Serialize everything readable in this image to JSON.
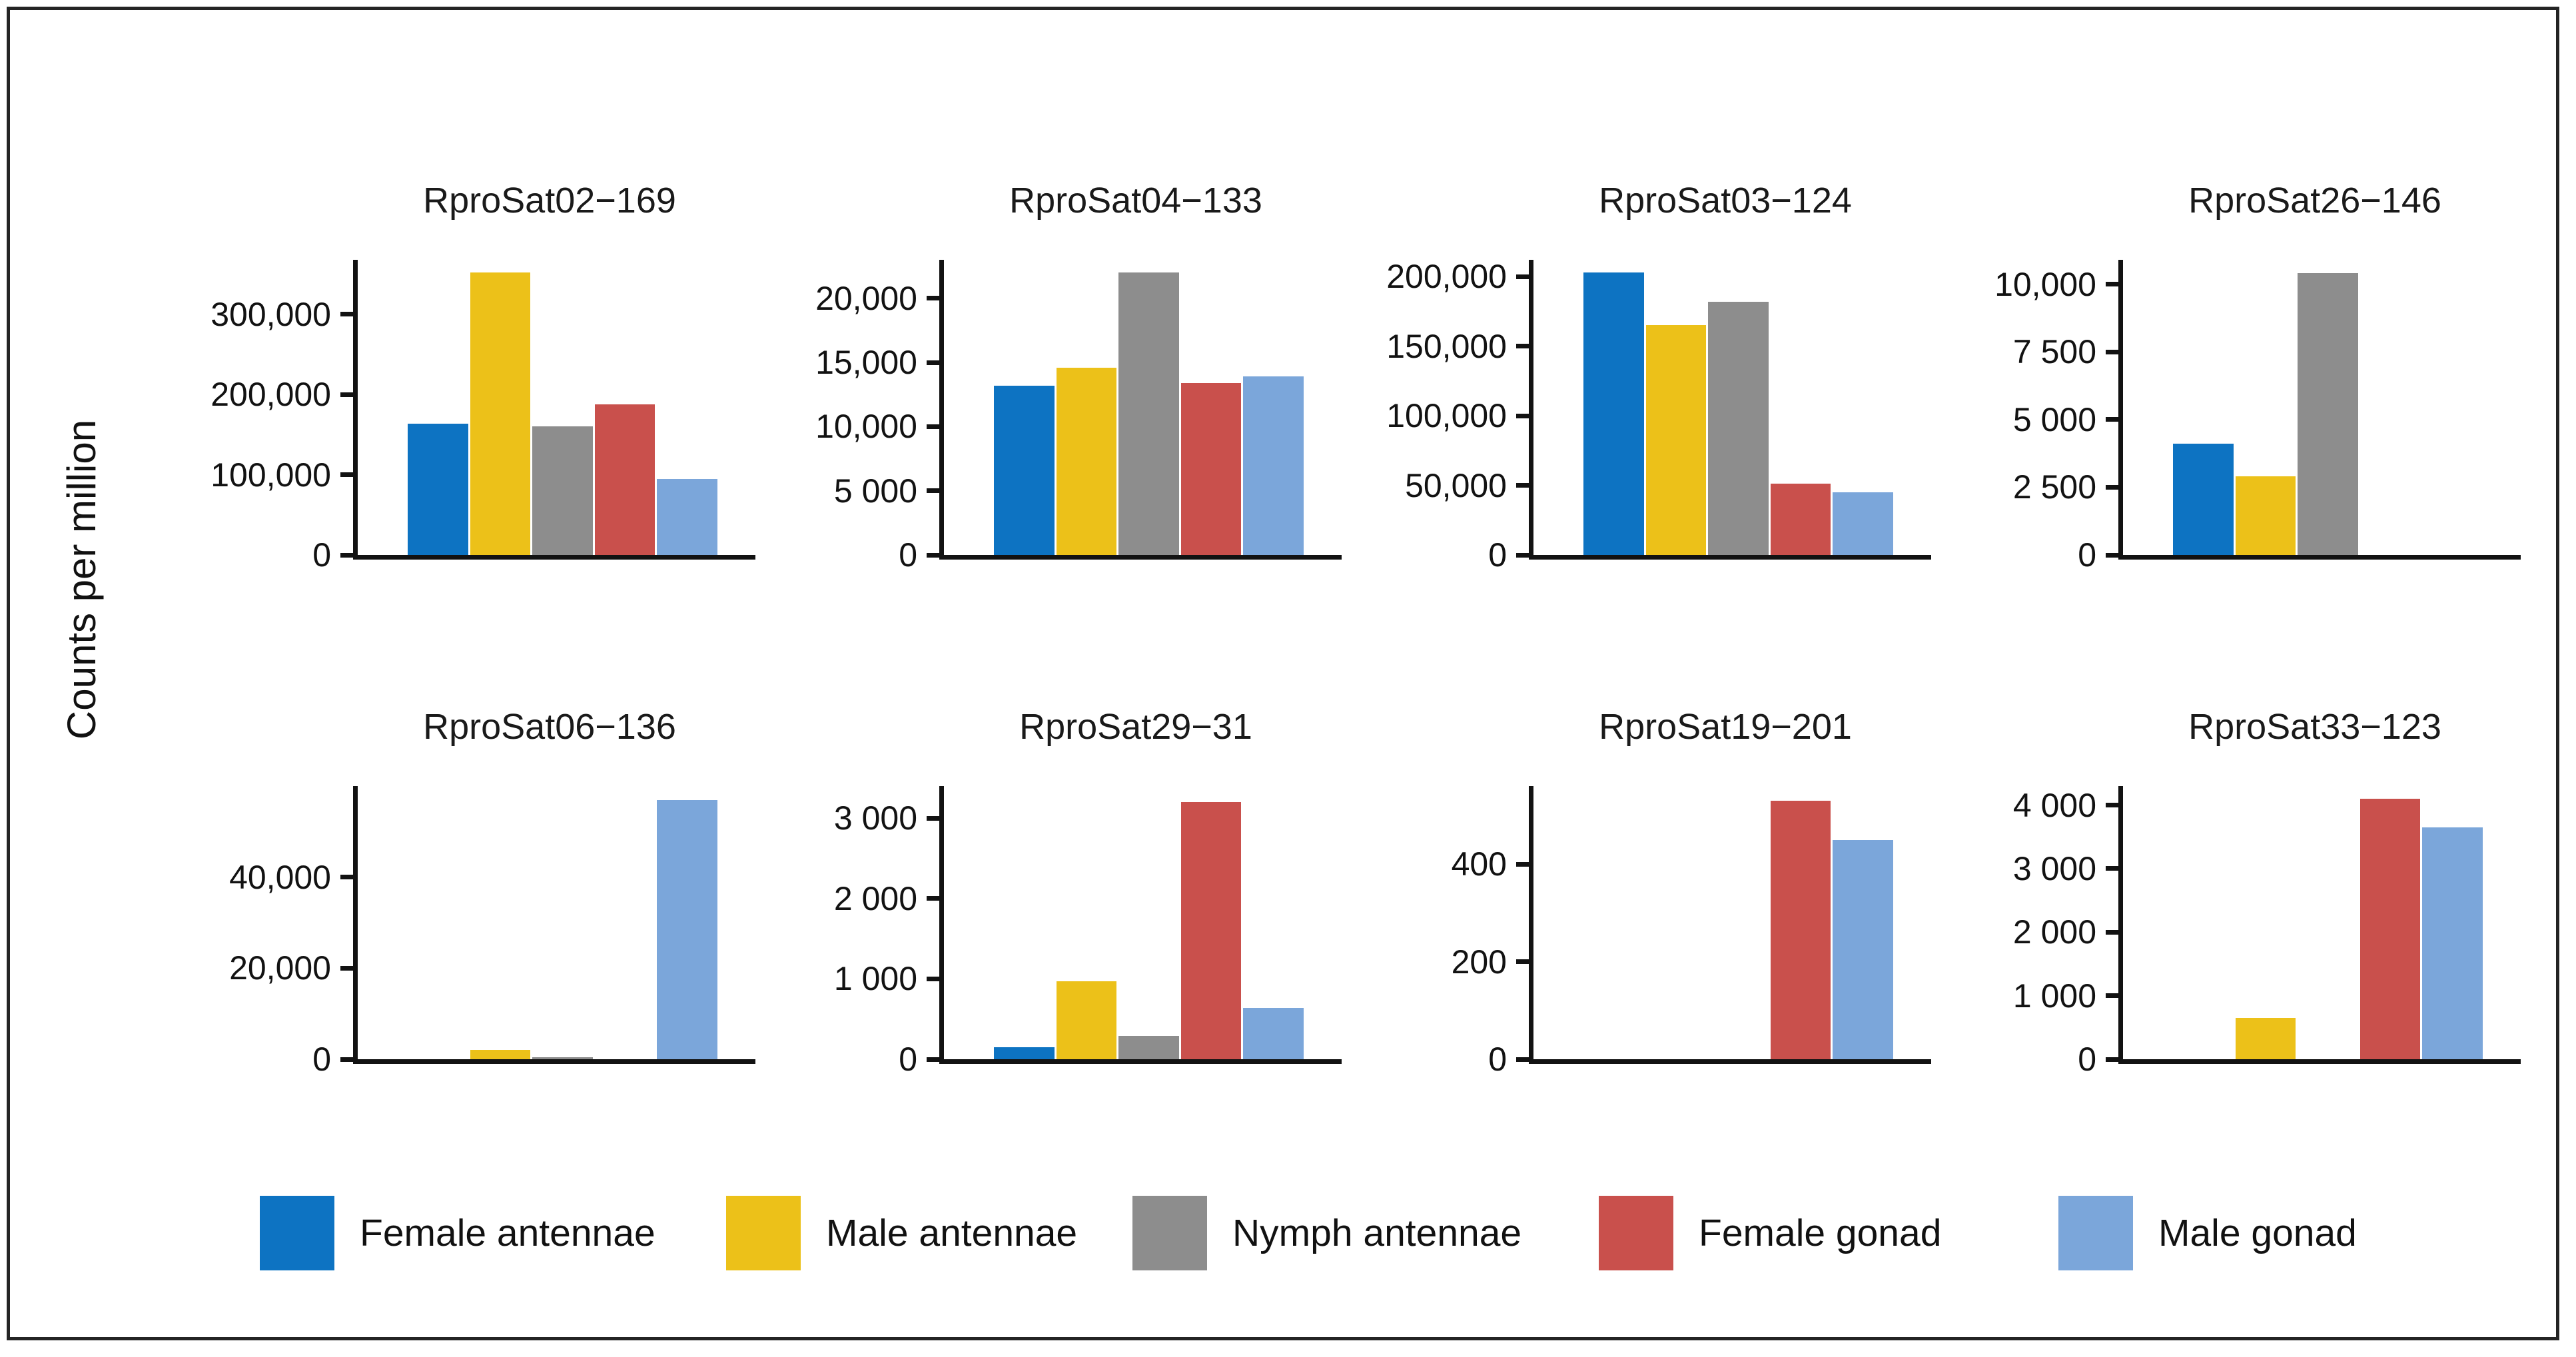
{
  "window": {
    "background": "#ffffff",
    "border_color": "#242424",
    "axis_color": "#121212"
  },
  "chart_data": {
    "type": "bar",
    "ylabel": "Counts per million",
    "grid": false,
    "legend_position": "bottom",
    "categories": [
      "Female antennae",
      "Male antennae",
      "Nymph antennae",
      "Female gonad",
      "Male gonad"
    ],
    "colors": [
      "#0d73c2",
      "#ecc119",
      "#8d8d8d",
      "#c9504c",
      "#7ba6da"
    ],
    "panels": [
      {
        "title": "RproSat02−169",
        "ymax": 368000,
        "values": [
          164000,
          352000,
          160000,
          188000,
          95000
        ],
        "ticks": [
          {
            "value": 300000,
            "label": "300,000"
          },
          {
            "value": 200000,
            "label": "200,000"
          },
          {
            "value": 100000,
            "label": "100,000"
          },
          {
            "value": 0,
            "label": "0"
          }
        ]
      },
      {
        "title": "RproSat04−133",
        "ymax": 23000,
        "values": [
          13200,
          14600,
          22000,
          13400,
          13900
        ],
        "ticks": [
          {
            "value": 20000,
            "label": "20,000"
          },
          {
            "value": 15000,
            "label": "15,000"
          },
          {
            "value": 10000,
            "label": "10,000"
          },
          {
            "value": 5000,
            "label": "5 000"
          },
          {
            "value": 0,
            "label": "0"
          }
        ]
      },
      {
        "title": "RproSat03−124",
        "ymax": 212000,
        "values": [
          203000,
          165000,
          182000,
          51000,
          45000
        ],
        "ticks": [
          {
            "value": 200000,
            "label": "200,000"
          },
          {
            "value": 150000,
            "label": "150,000"
          },
          {
            "value": 100000,
            "label": "100,000"
          },
          {
            "value": 50000,
            "label": "50,000"
          },
          {
            "value": 0,
            "label": "0"
          }
        ]
      },
      {
        "title": "RproSat26−146",
        "ymax": 10900,
        "values": [
          4100,
          2900,
          10400,
          0,
          0
        ],
        "ticks": [
          {
            "value": 10000,
            "label": "10,000"
          },
          {
            "value": 7500,
            "label": "7 500"
          },
          {
            "value": 5000,
            "label": "5 000"
          },
          {
            "value": 2500,
            "label": "2 500"
          },
          {
            "value": 0,
            "label": "0"
          }
        ]
      },
      {
        "title": "RproSat06−136",
        "ymax": 60000,
        "values": [
          0,
          2000,
          400,
          0,
          57000
        ],
        "ticks": [
          {
            "value": 40000,
            "label": "40,000"
          },
          {
            "value": 20000,
            "label": "20,000"
          },
          {
            "value": 0,
            "label": "0"
          }
        ]
      },
      {
        "title": "RproSat29−31",
        "ymax": 3400,
        "values": [
          150,
          970,
          290,
          3200,
          640
        ],
        "ticks": [
          {
            "value": 3000,
            "label": "3 000"
          },
          {
            "value": 2000,
            "label": "2 000"
          },
          {
            "value": 1000,
            "label": "1 000"
          },
          {
            "value": 0,
            "label": "0"
          }
        ]
      },
      {
        "title": "RproSat19−201",
        "ymax": 560,
        "values": [
          0,
          0,
          0,
          530,
          450
        ],
        "ticks": [
          {
            "value": 400,
            "label": "400"
          },
          {
            "value": 200,
            "label": "200"
          },
          {
            "value": 0,
            "label": "0"
          }
        ]
      },
      {
        "title": "RproSat33−123",
        "ymax": 4300,
        "values": [
          0,
          650,
          0,
          4100,
          3650
        ],
        "ticks": [
          {
            "value": 4000,
            "label": "4 000"
          },
          {
            "value": 3000,
            "label": "3 000"
          },
          {
            "value": 2000,
            "label": "2 000"
          },
          {
            "value": 1000,
            "label": "1 000"
          },
          {
            "value": 0,
            "label": "0"
          }
        ]
      }
    ]
  },
  "legend": {
    "items": [
      {
        "label": "Female antennae",
        "color": "#0d73c2"
      },
      {
        "label": "Male antennae",
        "color": "#ecc119"
      },
      {
        "label": "Nymph antennae",
        "color": "#8d8d8d"
      },
      {
        "label": "Female gonad",
        "color": "#c9504c"
      },
      {
        "label": "Male gonad",
        "color": "#7ba6da"
      }
    ]
  }
}
